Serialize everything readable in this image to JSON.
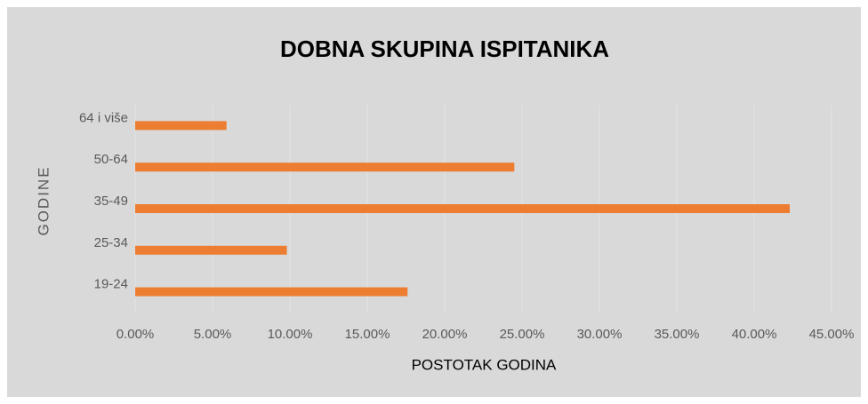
{
  "chart_data": {
    "type": "hbar",
    "title": "DOBNA SKUPINA ISPITANIKA",
    "x_label": "POSTOTAK GODINA",
    "y_label": "GODINE",
    "categories": [
      "19-24",
      "25-34",
      "35-49",
      "50-64",
      "64 i više"
    ],
    "values": [
      17.6,
      9.8,
      42.3,
      24.5,
      5.9
    ],
    "color": "#ed7d31",
    "xlim": [
      0,
      45
    ],
    "xticks": [
      {
        "value": 0,
        "label": "0.00%"
      },
      {
        "value": 5,
        "label": "5.00%"
      },
      {
        "value": 10,
        "label": "10.00%"
      },
      {
        "value": 15,
        "label": "15.00%"
      },
      {
        "value": 20,
        "label": "20.00%"
      },
      {
        "value": 25,
        "label": "25.00%"
      },
      {
        "value": 30,
        "label": "30.00%"
      },
      {
        "value": 35,
        "label": "35.00%"
      },
      {
        "value": 40,
        "label": "40.00%"
      },
      {
        "value": 45,
        "label": "45.00%"
      }
    ],
    "grid": true
  }
}
